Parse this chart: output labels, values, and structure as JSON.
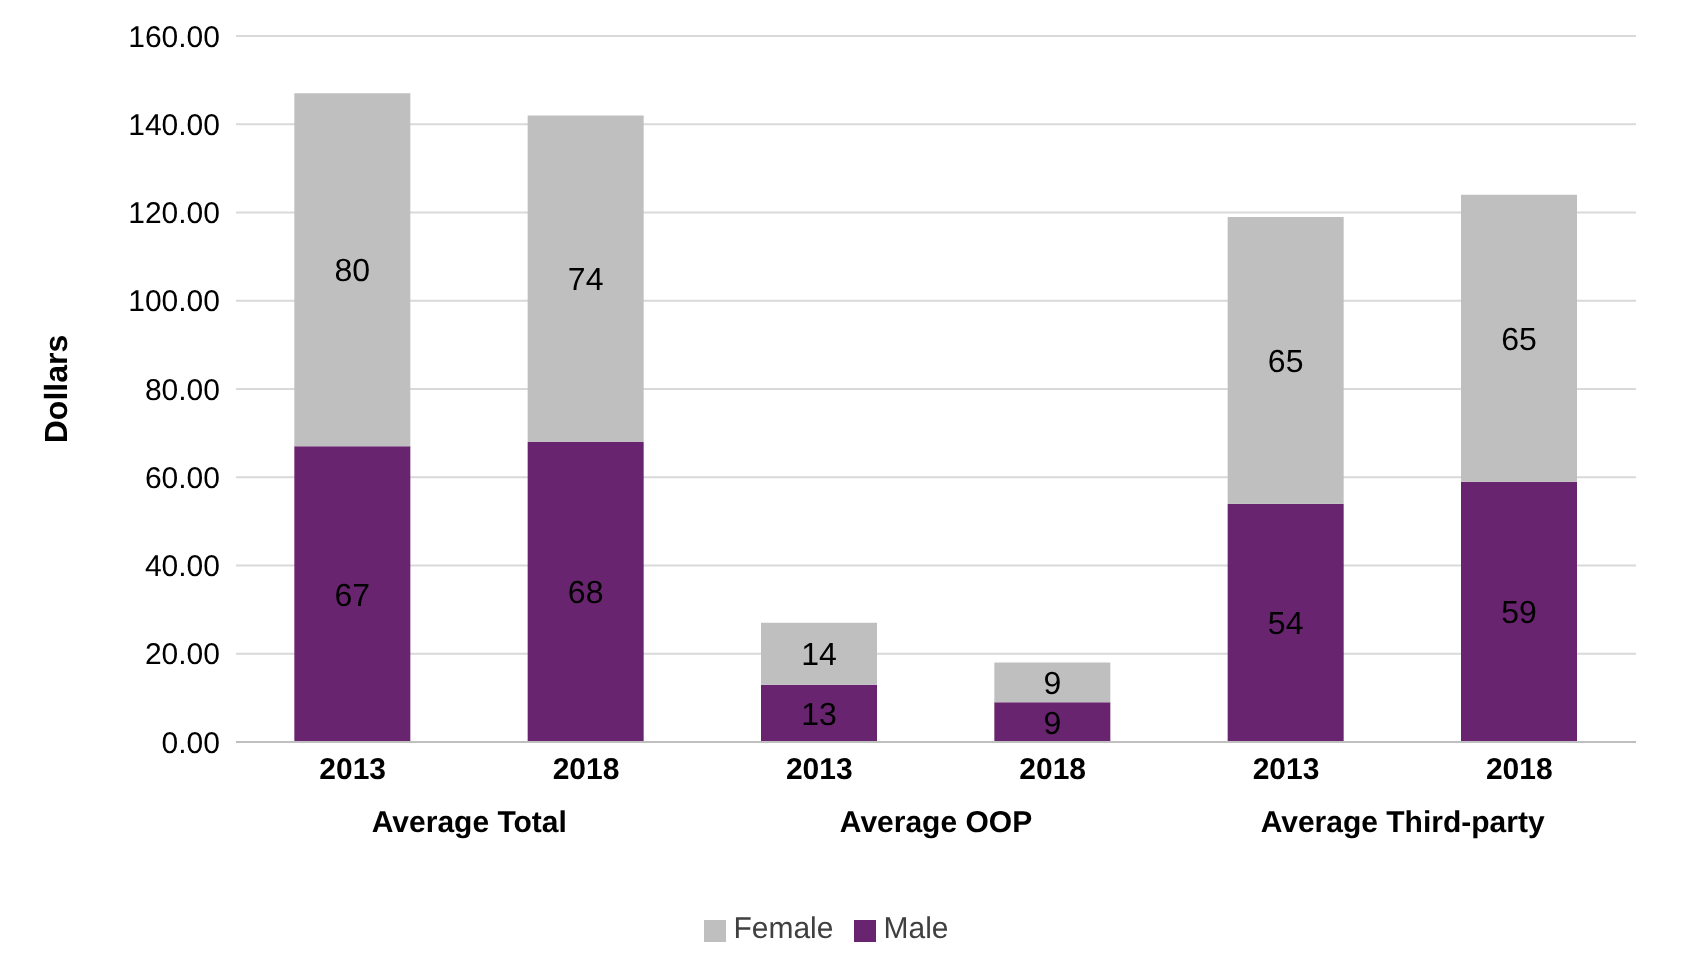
{
  "chart_data": {
    "type": "bar",
    "stacked": true,
    "ylabel": "Dollars",
    "categories": [
      "2013",
      "2018",
      "2013",
      "2018",
      "2013",
      "2018"
    ],
    "series": [
      {
        "name": "Male",
        "color": "#68246e",
        "values": [
          67,
          68,
          13,
          9,
          54,
          59
        ]
      },
      {
        "name": "Female",
        "color": "#bfbfbf",
        "values": [
          80,
          74,
          14,
          9,
          65,
          65
        ]
      }
    ],
    "ylim": [
      0,
      160
    ],
    "yticks": [
      {
        "value": 0,
        "label": "0.00"
      },
      {
        "value": 20,
        "label": "20.00"
      },
      {
        "value": 40,
        "label": "40.00"
      },
      {
        "value": 60,
        "label": "60.00"
      },
      {
        "value": 80,
        "label": "80.00"
      },
      {
        "value": 100,
        "label": "100.00"
      },
      {
        "value": 120,
        "label": "120.00"
      },
      {
        "value": 140,
        "label": "140.00"
      },
      {
        "value": 160,
        "label": "160.00"
      }
    ],
    "grid": "y",
    "legend": "bottom",
    "data_labels": true,
    "annotations": [
      "Average Total",
      "Average OOP",
      "Average Third-party"
    ]
  }
}
